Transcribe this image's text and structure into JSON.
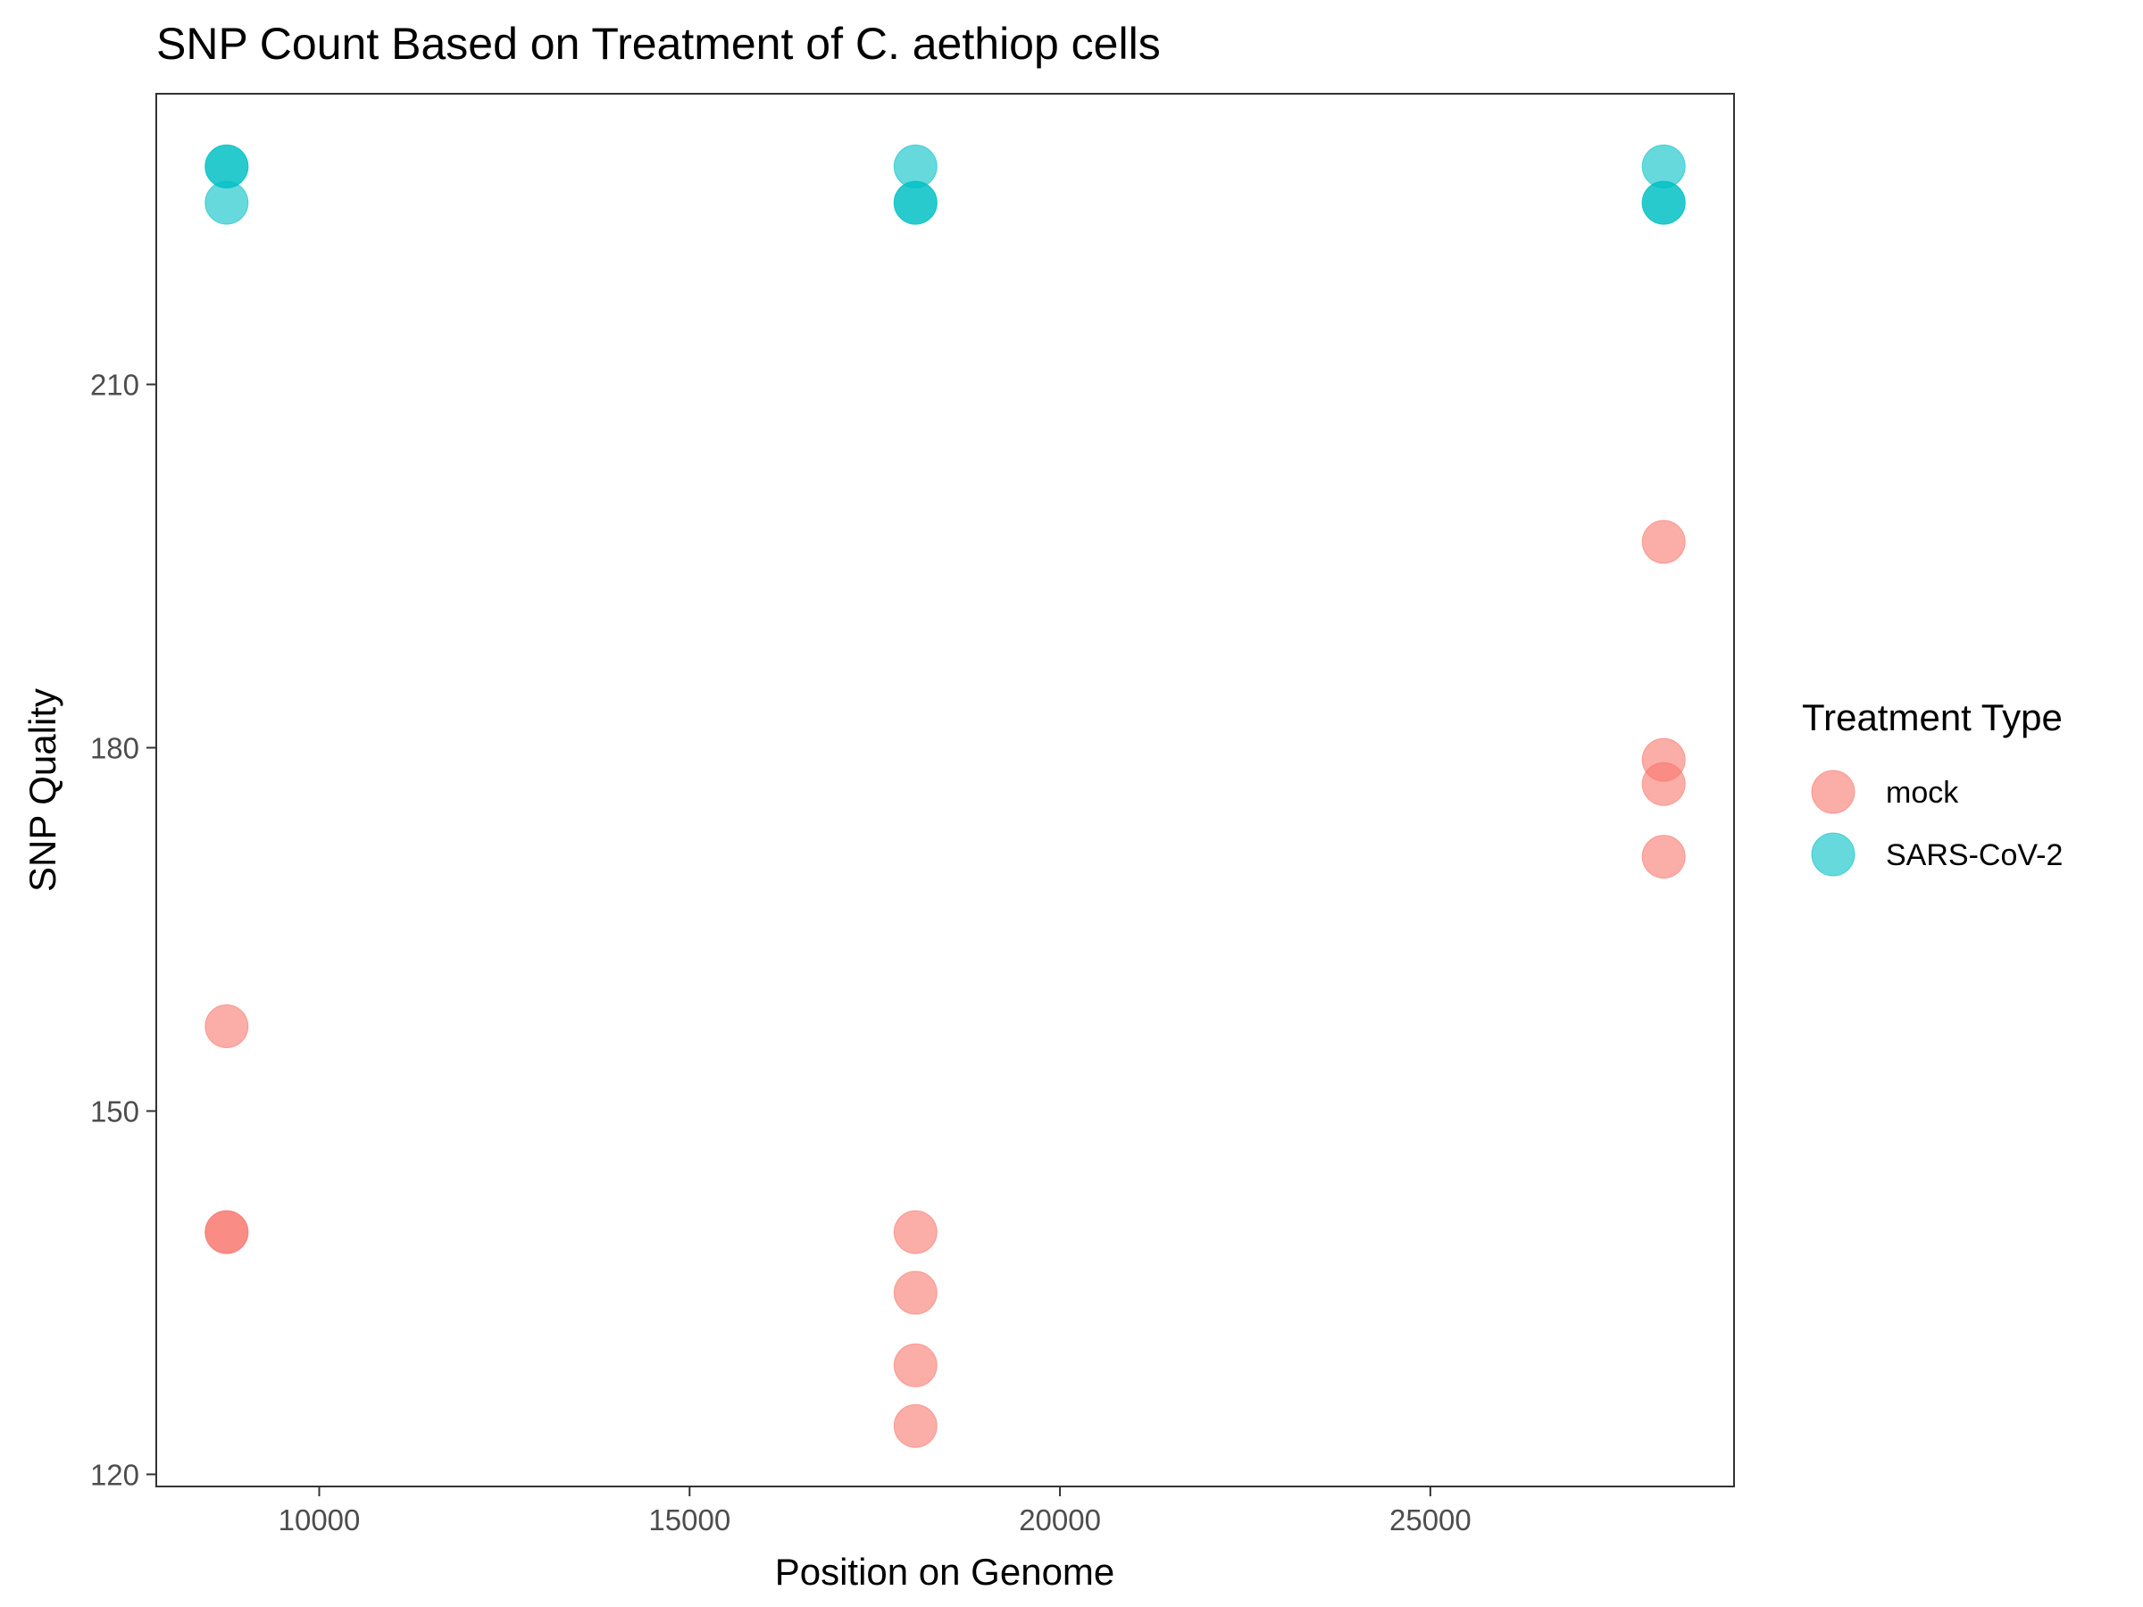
{
  "chart_data": {
    "type": "scatter",
    "title": "SNP Count Based on Treatment of C. aethiop cells",
    "xlabel": "Position on Genome",
    "ylabel": "SNP Quality",
    "xlim": [
      7800,
      29100
    ],
    "ylim": [
      119,
      234
    ],
    "xticks": [
      10000,
      15000,
      20000,
      25000
    ],
    "yticks": [
      120,
      150,
      180,
      210
    ],
    "grid": false,
    "legend": {
      "title": "Treatment Type",
      "placement": "right",
      "entries": [
        "mock",
        "SARS-CoV-2"
      ]
    },
    "series": [
      {
        "name": "mock",
        "color": "#F8766D",
        "points": [
          {
            "x": 8750,
            "y": 157
          },
          {
            "x": 8750,
            "y": 140
          },
          {
            "x": 8750,
            "y": 140
          },
          {
            "x": 18050,
            "y": 140
          },
          {
            "x": 18050,
            "y": 135
          },
          {
            "x": 18050,
            "y": 129
          },
          {
            "x": 18050,
            "y": 124
          },
          {
            "x": 28150,
            "y": 197
          },
          {
            "x": 28150,
            "y": 179
          },
          {
            "x": 28150,
            "y": 177
          },
          {
            "x": 28150,
            "y": 171
          }
        ]
      },
      {
        "name": "SARS-CoV-2",
        "color": "#00BFC4",
        "points": [
          {
            "x": 8750,
            "y": 228
          },
          {
            "x": 8750,
            "y": 228
          },
          {
            "x": 8750,
            "y": 225
          },
          {
            "x": 18050,
            "y": 228
          },
          {
            "x": 18050,
            "y": 225
          },
          {
            "x": 18050,
            "y": 225
          },
          {
            "x": 28150,
            "y": 228
          },
          {
            "x": 28150,
            "y": 225
          },
          {
            "x": 28150,
            "y": 225
          }
        ]
      }
    ]
  }
}
